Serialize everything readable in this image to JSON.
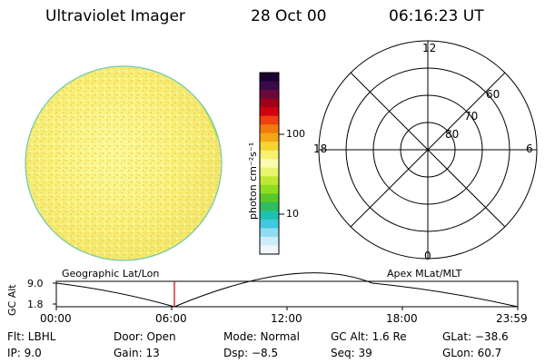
{
  "header": {
    "instrument": "Ultraviolet Imager",
    "date": "28 Oct 00",
    "time": "06:16:23 UT"
  },
  "colorbar": {
    "unit_label": "photon cm⁻²s⁻¹",
    "ticks": [
      "100",
      "10"
    ],
    "palette": [
      "#1a0030",
      "#3a0a4a",
      "#6a0a3a",
      "#a0001a",
      "#d00010",
      "#ee4010",
      "#f07a10",
      "#f4a818",
      "#f6d430",
      "#f8f070",
      "#fafab0",
      "#e8f470",
      "#c0e830",
      "#90dc20",
      "#58c828",
      "#30bc60",
      "#20c0b0",
      "#40c8e0",
      "#90dcf0",
      "#d0ecf8",
      "#f0f6fa"
    ]
  },
  "dial": {
    "local_times": [
      "12",
      "18",
      "6",
      "0"
    ],
    "latitudes": [
      "60",
      "70",
      "80"
    ]
  },
  "timeline": {
    "left_label": "Geographic Lat/Lon",
    "right_label": "Apex MLat/MLT",
    "axis_title": "GC Alt",
    "y_ticks": [
      "9.0",
      "1.8"
    ],
    "x_ticks": [
      "00:00",
      "06:00",
      "12:00",
      "18:00",
      "23:59"
    ]
  },
  "info": {
    "filter": "Flt: LBHL",
    "door": "Door: Open",
    "mode": "Mode: Normal",
    "gc_alt": "GC Alt: 1.6 Re",
    "glat": "GLat: −38.6",
    "ip": "IP:  9.0",
    "gain": "Gain: 13",
    "dsp": "Dsp:    −8.5",
    "seq": "Seq: 39",
    "glon": "GLon:  60.7"
  }
}
